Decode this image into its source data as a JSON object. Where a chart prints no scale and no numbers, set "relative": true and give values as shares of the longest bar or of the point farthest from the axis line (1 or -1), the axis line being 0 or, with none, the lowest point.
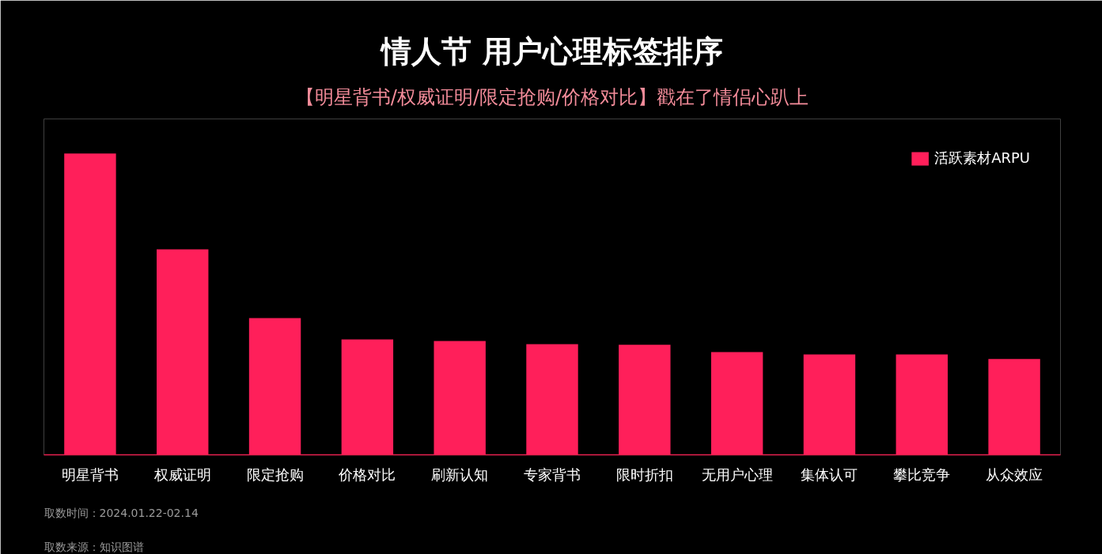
{
  "chart_data": {
    "type": "bar",
    "title": "情人节 用户心理标签排序",
    "subtitle": "【明星背书/权威证明/限定抢购/价格对比】戳在了情侣心趴上",
    "categories": [
      "明星背书",
      "权威证明",
      "限定抢购",
      "价格对比",
      "刷新认知",
      "专家背书",
      "限时折扣",
      "无用户心理",
      "集体认可",
      "攀比竞争",
      "从众效应"
    ],
    "series": [
      {
        "name": "活跃素材ARPU",
        "color": "#ff1f5a",
        "values": [
          1,
          0.682,
          0.454,
          0.383,
          0.378,
          0.367,
          0.365,
          0.341,
          0.333,
          0.333,
          0.318
        ]
      }
    ],
    "relative": true,
    "legend": "top right",
    "annotations": [
      "取数时间：2024.01.22-02.14",
      "取数来源：知识图谱"
    ]
  }
}
